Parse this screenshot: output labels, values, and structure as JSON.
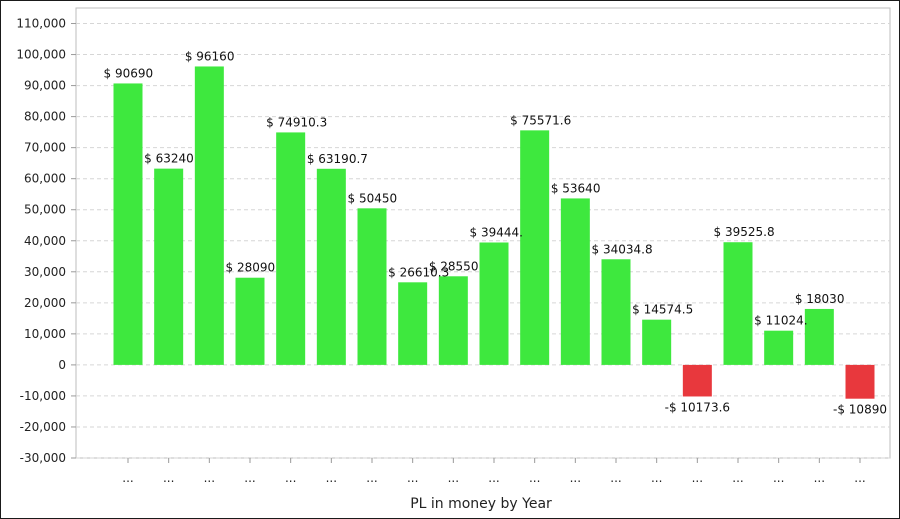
{
  "chart_data": {
    "type": "bar",
    "title": "",
    "xlabel": "PL in money by Year",
    "ylabel": "",
    "ylim": [
      -30000,
      115000
    ],
    "yticks": [
      -30000,
      -20000,
      -10000,
      0,
      10000,
      20000,
      30000,
      40000,
      50000,
      60000,
      70000,
      80000,
      90000,
      100000,
      110000
    ],
    "ytick_labels": [
      "-30,000",
      "-20,000",
      "-10,000",
      "0",
      "10,000",
      "20,000",
      "30,000",
      "40,000",
      "50,000",
      "60,000",
      "70,000",
      "80,000",
      "90,000",
      "100,000",
      "110,000"
    ],
    "grid": true,
    "legend": "none",
    "categories": [
      "...",
      "...",
      "...",
      "...",
      "...",
      "...",
      "...",
      "...",
      "...",
      "...",
      "...",
      "...",
      "...",
      "...",
      "...",
      "...",
      "...",
      "...",
      "..."
    ],
    "values": [
      90690,
      63240,
      96160,
      28090,
      74910.3,
      63190.7,
      50450,
      26610.3,
      28550,
      39444,
      75571.6,
      53640,
      34034.8,
      14574.5,
      -10173.6,
      39525.8,
      11024,
      18030,
      -10890
    ],
    "data_labels": [
      "$ 90690",
      "$ 63240",
      "$ 96160",
      "$ 28090",
      "$ 74910.3",
      "$ 63190.7",
      "$ 50450",
      "$ 26610.3",
      "$ 28550",
      "$ 39444.",
      "$ 75571.6",
      "$ 53640",
      "$ 34034.8",
      "$ 14574.5",
      "-$ 10173.6",
      "$ 39525.8",
      "$ 11024.",
      "$ 18030",
      "-$ 10890"
    ],
    "colors": {
      "positive": "#3ee83e",
      "negative": "#e8383d",
      "grid": "#d6d6d6",
      "axis": "#9a9a9a"
    }
  }
}
